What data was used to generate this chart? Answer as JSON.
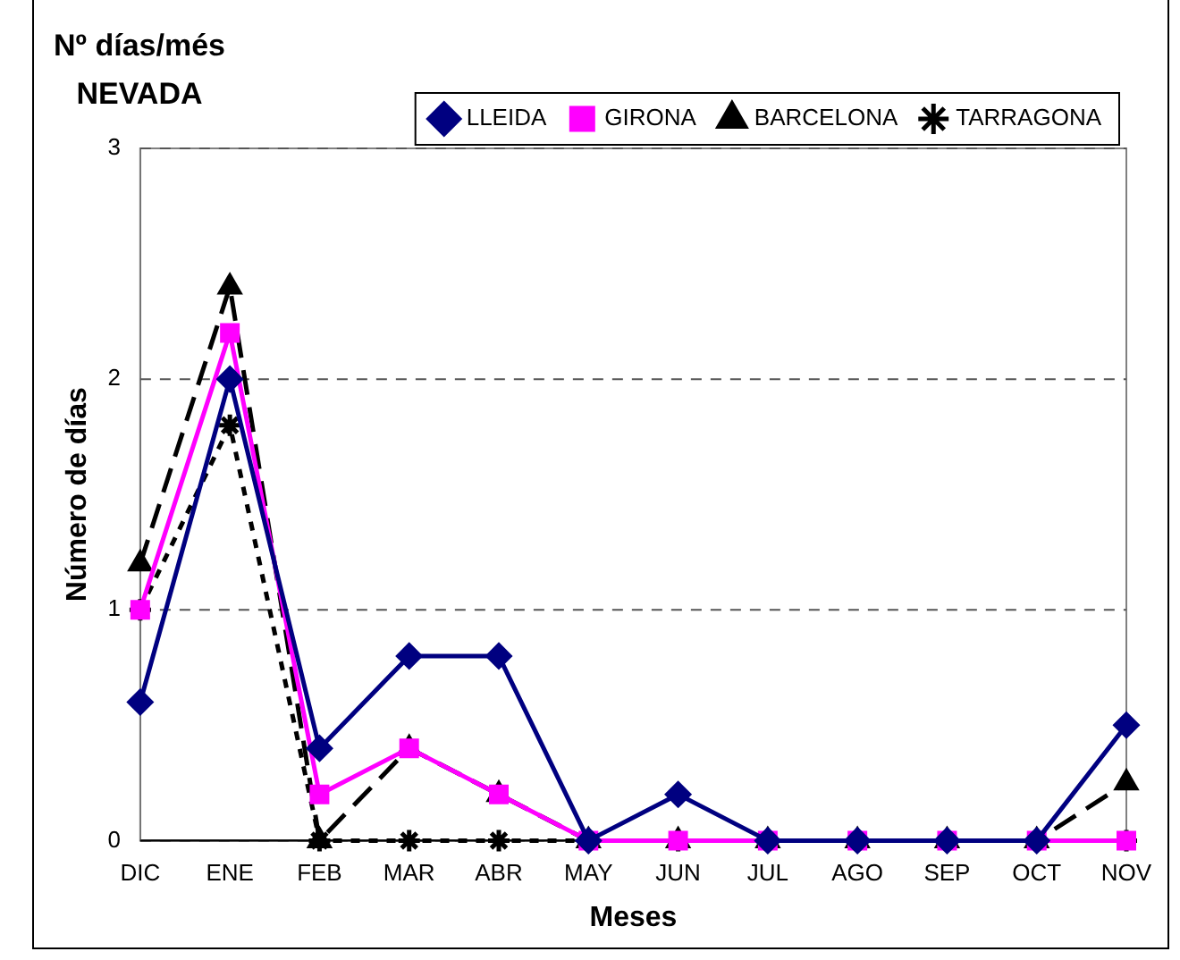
{
  "chart_data": {
    "type": "line",
    "title": "Nº días/més\nNEVADA",
    "xlabel": "Meses",
    "ylabel": "Número de días",
    "categories": [
      "DIC",
      "ENE",
      "FEB",
      "MAR",
      "ABR",
      "MAY",
      "JUN",
      "JUL",
      "AGO",
      "SEP",
      "OCT",
      "NOV"
    ],
    "ylim": [
      0,
      3
    ],
    "yticks": [
      0,
      1,
      2,
      3
    ],
    "grid": "y",
    "legend": "top right",
    "series": [
      {
        "name": "LLEIDA",
        "color": "#000080",
        "marker": "diamond",
        "line_style": "solid",
        "values": [
          0.6,
          2,
          0.4,
          0.8,
          0.8,
          0,
          0.2,
          0,
          0,
          0,
          0,
          0.5
        ]
      },
      {
        "name": "GIRONA",
        "color": "#ff00ff",
        "marker": "square",
        "line_style": "solid",
        "values": [
          1,
          2.2,
          0.2,
          0.4,
          0.2,
          0,
          0,
          0,
          0,
          0,
          0,
          0
        ]
      },
      {
        "name": "BARCELONA",
        "color": "#000000",
        "marker": "triangle",
        "line_style": "dashed",
        "values": [
          1.2,
          2.4,
          0,
          0.4,
          0.2,
          0,
          0,
          0,
          0,
          0,
          0,
          0.25
        ]
      },
      {
        "name": "TARRAGONA",
        "color": "#000000",
        "marker": "cross",
        "line_style": "dotted",
        "values": [
          1,
          1.8,
          0,
          0,
          0,
          0,
          0,
          0,
          0,
          0,
          0,
          0
        ]
      }
    ]
  }
}
